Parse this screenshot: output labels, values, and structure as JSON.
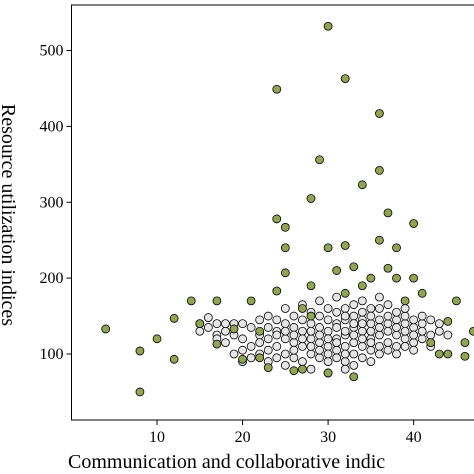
{
  "chart_data": {
    "type": "scatter",
    "x_label": "Communication and collaborative indic",
    "y_label": "Resource utilization indices",
    "xlim": [
      0,
      47
    ],
    "ylim": [
      13,
      560
    ],
    "xticks": [
      10,
      20,
      30,
      40
    ],
    "yticks": [
      100,
      200,
      300,
      400,
      500
    ],
    "series": [
      {
        "color": "#e6e6e6",
        "x": [
          15,
          15,
          16,
          16,
          17,
          17,
          17,
          18,
          18,
          18,
          19,
          19,
          19,
          20,
          20,
          20,
          20,
          21,
          21,
          21,
          22,
          22,
          22,
          22,
          23,
          23,
          23,
          23,
          23,
          24,
          24,
          24,
          24,
          24,
          25,
          25,
          25,
          25,
          25,
          25,
          26,
          26,
          26,
          26,
          26,
          26,
          27,
          27,
          27,
          27,
          27,
          27,
          28,
          28,
          28,
          28,
          28,
          28,
          28,
          29,
          29,
          29,
          29,
          29,
          29,
          29,
          30,
          30,
          30,
          30,
          30,
          30,
          30,
          30,
          31,
          31,
          31,
          31,
          31,
          31,
          31,
          31,
          32,
          32,
          32,
          32,
          32,
          32,
          32,
          32,
          32,
          33,
          33,
          33,
          33,
          33,
          33,
          33,
          33,
          34,
          34,
          34,
          34,
          34,
          34,
          34,
          34,
          35,
          35,
          35,
          35,
          35,
          35,
          35,
          35,
          36,
          36,
          36,
          36,
          36,
          36,
          36,
          37,
          37,
          37,
          37,
          37,
          37,
          38,
          38,
          38,
          38,
          38,
          38,
          39,
          39,
          39,
          39,
          39,
          39,
          40,
          40,
          40,
          40,
          40,
          41,
          41,
          41,
          41,
          42,
          42,
          42,
          43,
          43,
          44
        ],
        "values": [
          140,
          130,
          135,
          148,
          125,
          140,
          120,
          130,
          115,
          140,
          125,
          100,
          140,
          140,
          120,
          105,
          90,
          135,
          110,
          95,
          125,
          145,
          100,
          115,
          120,
          135,
          150,
          90,
          105,
          110,
          130,
          145,
          95,
          125,
          140,
          120,
          100,
          160,
          85,
          130,
          115,
          135,
          150,
          95,
          105,
          125,
          130,
          110,
          145,
          90,
          165,
          120,
          120,
          140,
          100,
          155,
          80,
          130,
          110,
          135,
          115,
          150,
          95,
          125,
          170,
          105,
          130,
          145,
          110,
          90,
          160,
          120,
          100,
          75,
          140,
          120,
          155,
          105,
          135,
          175,
          95,
          115,
          125,
          145,
          110,
          160,
          90,
          130,
          100,
          80,
          150,
          135,
          115,
          150,
          100,
          125,
          165,
          85,
          140,
          130,
          145,
          110,
          155,
          120,
          95,
          170,
          140,
          140,
          120,
          160,
          105,
          130,
          150,
          90,
          115,
          125,
          145,
          110,
          160,
          135,
          100,
          175,
          140,
          115,
          150,
          130,
          105,
          165,
          125,
          145,
          110,
          155,
          135,
          100,
          140,
          120,
          150,
          130,
          110,
          160,
          135,
          115,
          145,
          125,
          105,
          140,
          120,
          150,
          130,
          125,
          145,
          110,
          140,
          130,
          125
        ]
      },
      {
        "color": "#8fa552",
        "x": [
          4,
          8,
          8,
          10,
          12,
          12,
          14,
          15,
          17,
          17,
          19,
          20,
          21,
          22,
          23,
          24,
          24,
          25,
          25,
          25,
          24,
          26,
          27,
          28,
          28,
          29,
          30,
          30,
          31,
          32,
          32,
          32,
          33,
          34,
          34,
          35,
          36,
          36,
          36,
          37,
          37,
          38,
          38,
          39,
          40,
          40,
          41,
          42,
          43,
          44,
          44,
          45,
          46,
          46,
          47,
          33,
          30,
          27,
          22,
          28
        ],
        "values": [
          133,
          104,
          50,
          120,
          147,
          93,
          170,
          140,
          170,
          113,
          133,
          93,
          170,
          130,
          82,
          449,
          278,
          267,
          240,
          207,
          183,
          78,
          160,
          305,
          190,
          356,
          240,
          532,
          210,
          463,
          243,
          180,
          215,
          323,
          190,
          200,
          417,
          342,
          250,
          286,
          213,
          240,
          200,
          170,
          272,
          200,
          180,
          115,
          100,
          143,
          100,
          170,
          97,
          115,
          130,
          70,
          75,
          80,
          95,
          150
        ]
      }
    ]
  }
}
